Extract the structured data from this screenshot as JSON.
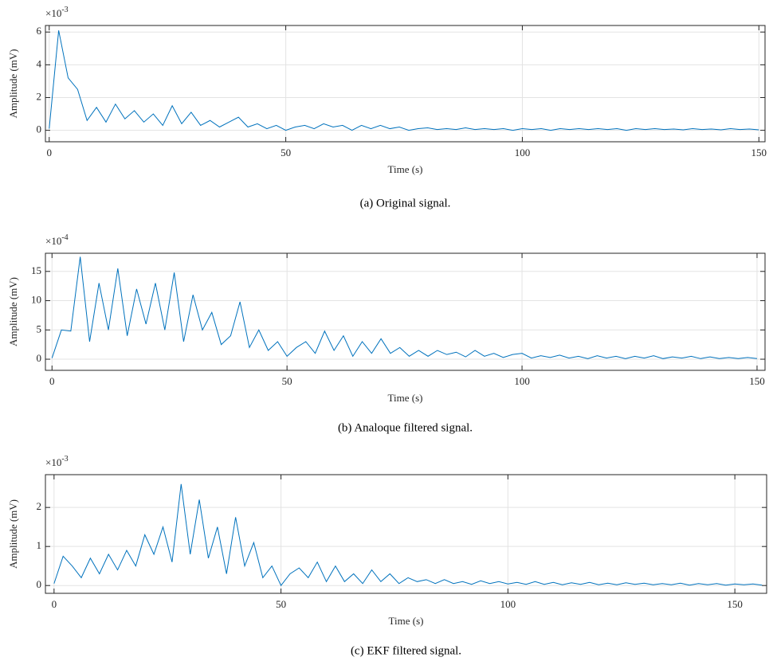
{
  "chart_data": [
    {
      "type": "line",
      "exponent_base": "×10",
      "exponent": "-3",
      "xlabel": "Time (s)",
      "ylabel": "Amplitude (mV)",
      "caption": "(a) Original signal.",
      "color": "#0072bd",
      "grid": true,
      "xlim": [
        -0.8,
        151.3
      ],
      "ylim": [
        -0.7,
        6.4
      ],
      "xticks": [
        0,
        50,
        100,
        150
      ],
      "yticks": [
        0,
        2,
        4,
        6
      ],
      "x": [
        0,
        2,
        4,
        6,
        8,
        10,
        12,
        14,
        16,
        18,
        20,
        22,
        24,
        26,
        28,
        30,
        32,
        34,
        36,
        38,
        40,
        42,
        44,
        46,
        48,
        50,
        52,
        54,
        56,
        58,
        60,
        62,
        64,
        66,
        68,
        70,
        72,
        74,
        76,
        78,
        80,
        82,
        84,
        86,
        88,
        90,
        92,
        94,
        96,
        98,
        100,
        102,
        104,
        106,
        108,
        110,
        112,
        114,
        116,
        118,
        120,
        122,
        124,
        126,
        128,
        130,
        132,
        134,
        136,
        138,
        140,
        142,
        144,
        146,
        148,
        150
      ],
      "values": [
        0.1,
        6.1,
        3.2,
        2.5,
        0.6,
        1.4,
        0.5,
        1.6,
        0.7,
        1.2,
        0.5,
        1.0,
        0.3,
        1.5,
        0.4,
        1.1,
        0.3,
        0.6,
        0.2,
        0.5,
        0.8,
        0.2,
        0.4,
        0.1,
        0.3,
        0.0,
        0.2,
        0.3,
        0.1,
        0.4,
        0.2,
        0.3,
        0.0,
        0.3,
        0.1,
        0.3,
        0.1,
        0.2,
        0.0,
        0.1,
        0.15,
        0.05,
        0.1,
        0.05,
        0.15,
        0.05,
        0.1,
        0.05,
        0.1,
        0.0,
        0.1,
        0.05,
        0.1,
        0.0,
        0.1,
        0.05,
        0.1,
        0.05,
        0.1,
        0.05,
        0.1,
        0.0,
        0.1,
        0.05,
        0.1,
        0.05,
        0.08,
        0.03,
        0.1,
        0.05,
        0.08,
        0.03,
        0.1,
        0.05,
        0.08,
        0.03
      ]
    },
    {
      "type": "line",
      "exponent_base": "×10",
      "exponent": "-4",
      "xlabel": "Time (s)",
      "ylabel": "Amplitude (mV)",
      "caption": "(b) Analoque filtered signal.",
      "color": "#0072bd",
      "grid": true,
      "xlim": [
        -1.4,
        151.7
      ],
      "ylim": [
        -1.9,
        18.1
      ],
      "xticks": [
        0,
        50,
        100,
        150
      ],
      "yticks": [
        0,
        5,
        10,
        15
      ],
      "x": [
        0,
        2,
        4,
        6,
        8,
        10,
        12,
        14,
        16,
        18,
        20,
        22,
        24,
        26,
        28,
        30,
        32,
        34,
        36,
        38,
        40,
        42,
        44,
        46,
        48,
        50,
        52,
        54,
        56,
        58,
        60,
        62,
        64,
        66,
        68,
        70,
        72,
        74,
        76,
        78,
        80,
        82,
        84,
        86,
        88,
        90,
        92,
        94,
        96,
        98,
        100,
        102,
        104,
        106,
        108,
        110,
        112,
        114,
        116,
        118,
        120,
        122,
        124,
        126,
        128,
        130,
        132,
        134,
        136,
        138,
        140,
        142,
        144,
        146,
        148,
        150
      ],
      "values": [
        0.2,
        5,
        4.8,
        17.5,
        3,
        13,
        5,
        15.5,
        4,
        12,
        6,
        13,
        5,
        14.8,
        3,
        11,
        5,
        8,
        2.5,
        4,
        9.8,
        2,
        5,
        1.5,
        3,
        0.5,
        2,
        3,
        1,
        4.8,
        1.5,
        4,
        0.5,
        3,
        1,
        3.5,
        1,
        2,
        0.5,
        1.5,
        0.5,
        1.5,
        0.8,
        1.2,
        0.4,
        1.5,
        0.5,
        1,
        0.3,
        0.8,
        1,
        0.2,
        0.6,
        0.3,
        0.7,
        0.2,
        0.5,
        0.1,
        0.6,
        0.2,
        0.5,
        0.1,
        0.5,
        0.2,
        0.6,
        0.1,
        0.4,
        0.2,
        0.5,
        0.1,
        0.4,
        0.1,
        0.3,
        0.1,
        0.3,
        0.1
      ]
    },
    {
      "type": "line",
      "exponent_base": "×10",
      "exponent": "-3",
      "xlabel": "Time (s)",
      "ylabel": "Amplitude (mV)",
      "caption": "(c) EKF filtered signal.",
      "color": "#0072bd",
      "grid": true,
      "xlim": [
        -1.9,
        157
      ],
      "ylim": [
        -0.2,
        2.84
      ],
      "xticks": [
        0,
        50,
        100,
        150
      ],
      "yticks": [
        0,
        1,
        2
      ],
      "x": [
        0,
        2,
        4,
        6,
        8,
        10,
        12,
        14,
        16,
        18,
        20,
        22,
        24,
        26,
        28,
        30,
        32,
        34,
        36,
        38,
        40,
        42,
        44,
        46,
        48,
        50,
        52,
        54,
        56,
        58,
        60,
        62,
        64,
        66,
        68,
        70,
        72,
        74,
        76,
        78,
        80,
        82,
        84,
        86,
        88,
        90,
        92,
        94,
        96,
        98,
        100,
        102,
        104,
        106,
        108,
        110,
        112,
        114,
        116,
        118,
        120,
        122,
        124,
        126,
        128,
        130,
        132,
        134,
        136,
        138,
        140,
        142,
        144,
        146,
        148,
        150,
        152,
        154,
        156
      ],
      "values": [
        0.05,
        0.75,
        0.5,
        0.2,
        0.7,
        0.3,
        0.8,
        0.4,
        0.9,
        0.5,
        1.3,
        0.8,
        1.5,
        0.6,
        2.6,
        0.8,
        2.2,
        0.7,
        1.5,
        0.3,
        1.75,
        0.5,
        1.1,
        0.2,
        0.5,
        0.0,
        0.3,
        0.45,
        0.2,
        0.6,
        0.1,
        0.5,
        0.1,
        0.3,
        0.05,
        0.4,
        0.1,
        0.3,
        0.05,
        0.2,
        0.1,
        0.15,
        0.05,
        0.15,
        0.05,
        0.1,
        0.03,
        0.12,
        0.05,
        0.1,
        0.04,
        0.08,
        0.03,
        0.1,
        0.03,
        0.08,
        0.02,
        0.07,
        0.03,
        0.08,
        0.02,
        0.06,
        0.02,
        0.07,
        0.03,
        0.06,
        0.02,
        0.05,
        0.02,
        0.06,
        0.01,
        0.05,
        0.02,
        0.05,
        0.01,
        0.04,
        0.02,
        0.04,
        0.01
      ]
    }
  ]
}
